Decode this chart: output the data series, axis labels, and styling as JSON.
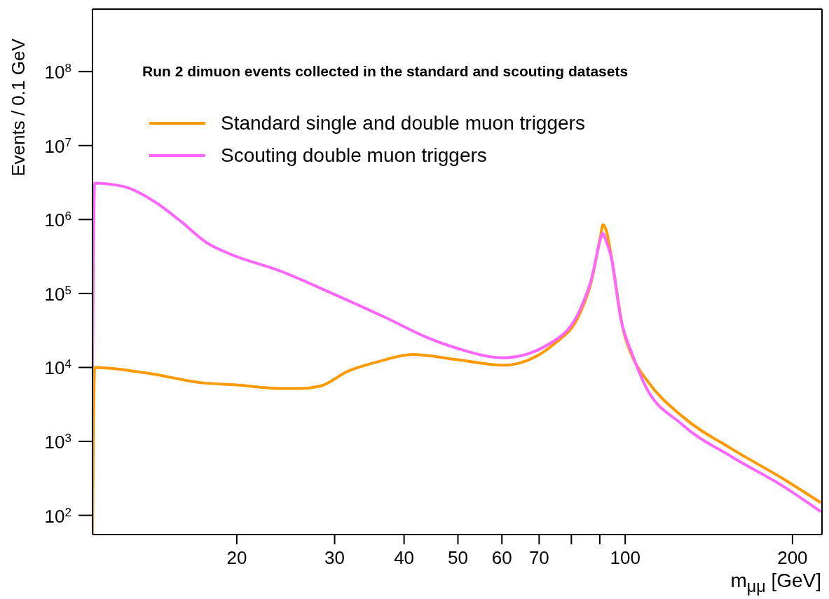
{
  "chart_data": {
    "type": "line",
    "xlabel": "m$_{μμ}$ [GeV]",
    "ylabel": "Events / 0.1 GeV",
    "annotations": [
      "Run 2 dimuon events collected in the standard and scouting datasets"
    ],
    "log": "xy",
    "xlim": [
      11,
      226
    ],
    "ylim": [
      55,
      700000000
    ],
    "xticks": [
      20,
      30,
      40,
      50,
      60,
      70,
      {
        "value": 80,
        "label": null
      },
      {
        "value": 90,
        "label": null
      },
      100,
      200
    ],
    "yticks": [
      {
        "value": 100,
        "label": "10$^{2}$"
      },
      {
        "value": 1000,
        "label": "10$^{3}$"
      },
      {
        "value": 10000,
        "label": "10$^{4}$"
      },
      {
        "value": 100000,
        "label": "10$^{5}$"
      },
      {
        "value": 1000000,
        "label": "10$^{6}$"
      },
      {
        "value": 10000000,
        "label": "10$^{7}$"
      },
      {
        "value": 100000000,
        "label": "10$^{8}$"
      }
    ],
    "grid": false,
    "legend": "top left",
    "marker": "none",
    "line_style": "solid",
    "series": [
      {
        "name": "Standard single and double muon triggers",
        "color": "#ff9900",
        "x": [
          11,
          11.1,
          13.9,
          17.3,
          20,
          24,
          26,
          28.3,
          31.6,
          36,
          41.4,
          50,
          60.4,
          74.6,
          83,
          87,
          90.3,
          91.2,
          92.5,
          94.2,
          99.2,
          103,
          110.1,
          126.5,
          156,
          192,
          225
        ],
        "values": [
          55,
          10000,
          8300,
          6200,
          5800,
          5200,
          5200,
          5600,
          8800,
          12000,
          15000,
          12700,
          10700,
          21000,
          55000,
          150000,
          600000,
          850000,
          700000,
          350000,
          32000,
          14000,
          6300,
          2200,
          780,
          315,
          148
        ]
      },
      {
        "name": "Scouting double muon triggers",
        "color": "#ff66ff",
        "x": [
          11,
          11.1,
          12.5,
          14.3,
          15.9,
          17.7,
          19.3,
          24,
          29.9,
          37.1,
          44.2,
          50,
          60.4,
          74.6,
          83,
          87,
          90.3,
          91,
          92.5,
          94.2,
          98.3,
          103,
          107.9,
          126.5,
          156,
          192,
          225
        ],
        "values": [
          10000,
          3100000,
          2800000,
          1700000,
          930000,
          480000,
          350000,
          200000,
          98000,
          47000,
          25000,
          18000,
          13500,
          23000,
          61000,
          160000,
          550000,
          650000,
          500000,
          330000,
          44000,
          15000,
          6300,
          1700,
          610,
          250,
          112
        ]
      }
    ]
  }
}
